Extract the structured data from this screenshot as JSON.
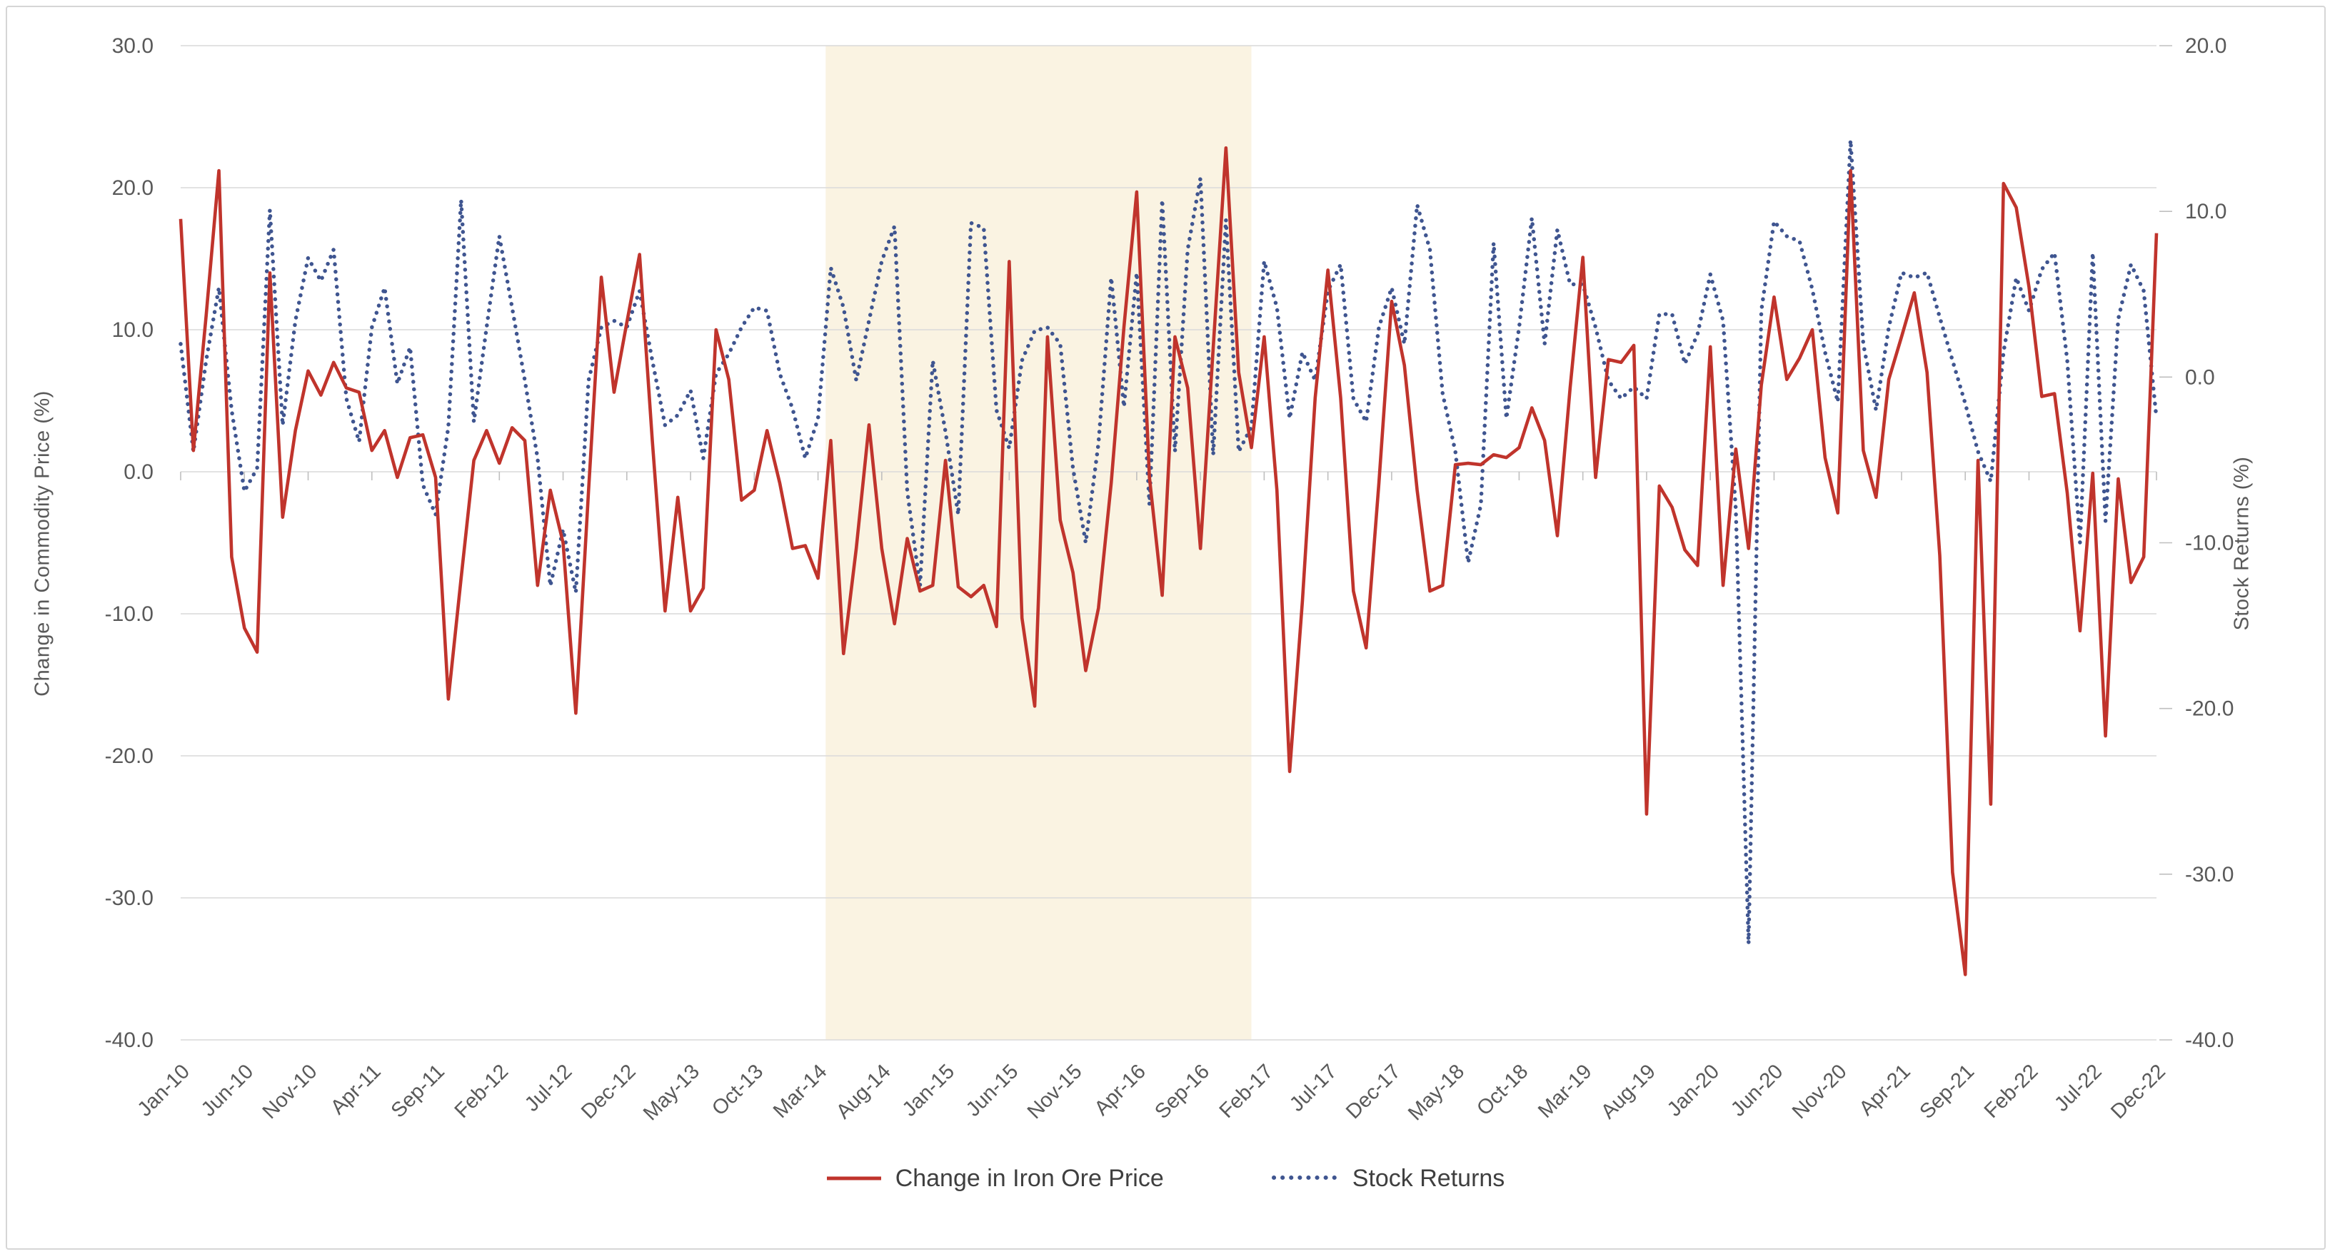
{
  "chart_data": {
    "type": "line",
    "title": "",
    "grid": "horizontal",
    "legend_position": "bottom",
    "left_axis": {
      "title": "Change in Commodity Price (%)",
      "min": -40.0,
      "max": 30.0,
      "step": 10,
      "ticks": [
        "30.0",
        "20.0",
        "10.0",
        "0.0",
        "-10.0",
        "-20.0",
        "-30.0",
        "-40.0"
      ]
    },
    "right_axis": {
      "title": "Stock Returns (%)",
      "min": -40.0,
      "max": 20.0,
      "step": 10,
      "ticks": [
        "20.0",
        "10.0",
        "0.0",
        "-10.0",
        "-20.0",
        "-30.0",
        "-40.0"
      ]
    },
    "x_tick_labels": [
      "Jan-10",
      "Jun-10",
      "Nov-10",
      "Apr-11",
      "Sep-11",
      "Feb-12",
      "Jul-12",
      "Dec-12",
      "May-13",
      "Oct-13",
      "Mar-14",
      "Aug-14",
      "Jan-15",
      "Jun-15",
      "Nov-15",
      "Apr-16",
      "Sep-16",
      "Feb-17",
      "Jul-17",
      "Dec-17",
      "May-18",
      "Oct-18",
      "Mar-19",
      "Aug-19",
      "Jan-20",
      "Jun-20",
      "Nov-20",
      "Apr-21",
      "Sep-21",
      "Feb-22",
      "Jul-22",
      "Dec-22"
    ],
    "highlight_band": {
      "from": "Mar-14",
      "to": "Feb-17",
      "color": "#faf3e2"
    },
    "months": [
      "Jan-10",
      "Feb-10",
      "Mar-10",
      "Apr-10",
      "May-10",
      "Jun-10",
      "Jul-10",
      "Aug-10",
      "Sep-10",
      "Oct-10",
      "Nov-10",
      "Dec-10",
      "Jan-11",
      "Feb-11",
      "Mar-11",
      "Apr-11",
      "May-11",
      "Jun-11",
      "Jul-11",
      "Aug-11",
      "Sep-11",
      "Oct-11",
      "Nov-11",
      "Dec-11",
      "Jan-12",
      "Feb-12",
      "Mar-12",
      "Apr-12",
      "May-12",
      "Jun-12",
      "Jul-12",
      "Aug-12",
      "Sep-12",
      "Oct-12",
      "Nov-12",
      "Dec-12",
      "Jan-13",
      "Feb-13",
      "Mar-13",
      "Apr-13",
      "May-13",
      "Jun-13",
      "Jul-13",
      "Aug-13",
      "Sep-13",
      "Oct-13",
      "Nov-13",
      "Dec-13",
      "Jan-14",
      "Feb-14",
      "Mar-14",
      "Apr-14",
      "May-14",
      "Jun-14",
      "Jul-14",
      "Aug-14",
      "Sep-14",
      "Oct-14",
      "Nov-14",
      "Dec-14",
      "Jan-15",
      "Feb-15",
      "Mar-15",
      "Apr-15",
      "May-15",
      "Jun-15",
      "Jul-15",
      "Aug-15",
      "Sep-15",
      "Oct-15",
      "Nov-15",
      "Dec-15",
      "Jan-16",
      "Feb-16",
      "Mar-16",
      "Apr-16",
      "May-16",
      "Jun-16",
      "Jul-16",
      "Aug-16",
      "Sep-16",
      "Oct-16",
      "Nov-16",
      "Dec-16",
      "Jan-17",
      "Feb-17",
      "Mar-17",
      "Apr-17",
      "May-17",
      "Jun-17",
      "Jul-17",
      "Aug-17",
      "Sep-17",
      "Oct-17",
      "Nov-17",
      "Dec-17",
      "Jan-18",
      "Feb-18",
      "Mar-18",
      "Apr-18",
      "May-18",
      "Jun-18",
      "Jul-18",
      "Aug-18",
      "Sep-18",
      "Oct-18",
      "Nov-18",
      "Dec-18",
      "Jan-19",
      "Feb-19",
      "Mar-19",
      "Apr-19",
      "May-19",
      "Jun-19",
      "Jul-19",
      "Aug-19",
      "Sep-19",
      "Oct-19",
      "Nov-19",
      "Dec-19",
      "Jan-20",
      "Feb-20",
      "Mar-20",
      "Apr-20",
      "May-20",
      "Jun-20",
      "Jul-20",
      "Aug-20",
      "Sep-20",
      "Oct-20",
      "Nov-20",
      "Dec-20",
      "Jan-21",
      "Feb-21",
      "Mar-21",
      "Apr-21",
      "May-21",
      "Jun-21",
      "Jul-21",
      "Aug-21",
      "Sep-21",
      "Oct-21",
      "Nov-21",
      "Dec-21",
      "Jan-22",
      "Feb-22",
      "Mar-22",
      "Apr-22",
      "May-22",
      "Jun-22",
      "Jul-22",
      "Aug-22",
      "Sep-22",
      "Oct-22",
      "Nov-22",
      "Dec-22"
    ],
    "series": [
      {
        "name": "Change in Iron Ore Price",
        "axis": "left",
        "style": "solid",
        "color": "#c0342c",
        "values": [
          17.8,
          1.5,
          11.0,
          21.2,
          -6.0,
          -11.0,
          -12.7,
          14.0,
          -3.2,
          2.9,
          7.1,
          5.4,
          7.7,
          5.9,
          5.6,
          1.5,
          2.9,
          -0.4,
          2.4,
          2.6,
          -0.4,
          -16.0,
          -7.5,
          0.8,
          2.9,
          0.6,
          3.1,
          2.2,
          -8.0,
          -1.3,
          -5.0,
          -17.0,
          -1.3,
          13.7,
          5.6,
          10.5,
          15.3,
          2.2,
          -9.8,
          -1.8,
          -9.8,
          -8.2,
          10.0,
          6.5,
          -2.0,
          -1.3,
          2.9,
          -0.8,
          -5.4,
          -5.2,
          -7.5,
          2.2,
          -12.8,
          -5.4,
          3.3,
          -5.4,
          -10.7,
          -4.7,
          -8.4,
          -8.0,
          0.8,
          -8.1,
          -8.8,
          -8.0,
          -10.9,
          14.8,
          -10.3,
          -16.5,
          9.5,
          -3.4,
          -7.1,
          -14.0,
          -9.6,
          -0.8,
          10.2,
          19.7,
          -0.4,
          -8.7,
          9.5,
          5.9,
          -5.4,
          8.7,
          22.8,
          7.0,
          1.7,
          9.5,
          -1.3,
          -21.1,
          -9.1,
          5.2,
          14.2,
          5.2,
          -8.4,
          -12.4,
          -0.8,
          12.0,
          7.5,
          -1.3,
          -8.4,
          -8.0,
          0.5,
          0.6,
          0.5,
          1.2,
          1.0,
          1.7,
          4.5,
          2.2,
          -4.5,
          5.9,
          15.1,
          -0.4,
          7.9,
          7.7,
          8.9,
          -24.1,
          -1.0,
          -2.5,
          -5.5,
          -6.6,
          8.8,
          -8.0,
          1.6,
          -5.4,
          6.1,
          12.3,
          6.5,
          8.0,
          10.0,
          1.0,
          -2.9,
          21.2,
          1.5,
          -1.8,
          6.5,
          9.5,
          12.6,
          7.0,
          -5.9,
          -28.2,
          -35.4,
          0.8,
          -23.4,
          20.3,
          18.6,
          13.0,
          5.3,
          5.5,
          -1.5,
          -11.2,
          -0.1,
          -18.6,
          -0.5,
          -7.8,
          -6.0,
          16.8
        ]
      },
      {
        "name": "Stock Returns",
        "axis": "right",
        "style": "dotted",
        "color": "#3f5590",
        "values": [
          2.0,
          -4.5,
          1.0,
          5.4,
          -2.0,
          -6.9,
          -5.5,
          10.1,
          -2.9,
          3.4,
          7.2,
          5.8,
          7.7,
          -1.3,
          -3.9,
          3.0,
          5.4,
          -0.4,
          1.8,
          -6.5,
          -8.3,
          -3.0,
          10.7,
          -2.7,
          3.0,
          8.5,
          4.2,
          -0.2,
          -4.9,
          -12.6,
          -9.2,
          -13.0,
          -0.2,
          3.0,
          3.4,
          3.0,
          5.2,
          1.0,
          -2.9,
          -2.3,
          -0.8,
          -4.9,
          0.2,
          1.4,
          3.0,
          4.2,
          4.0,
          0.2,
          -1.9,
          -4.9,
          -2.5,
          6.6,
          4.2,
          -0.2,
          3.4,
          7.0,
          9.1,
          -6.9,
          -12.6,
          1.0,
          -3.3,
          -8.3,
          9.3,
          9.0,
          -2.0,
          -4.3,
          1.0,
          2.8,
          3.0,
          2.0,
          -5.5,
          -10.0,
          -4.0,
          6.0,
          -1.8,
          6.3,
          -7.7,
          10.7,
          -4.5,
          7.7,
          12.0,
          -4.7,
          9.5,
          -4.5,
          -3.0,
          7.0,
          4.2,
          -2.5,
          1.5,
          -0.2,
          5.2,
          6.8,
          -1.3,
          -2.7,
          3.0,
          5.4,
          2.0,
          10.4,
          7.7,
          -1.0,
          -4.5,
          -11.2,
          -7.7,
          8.1,
          -2.5,
          3.0,
          9.6,
          2.0,
          8.9,
          5.6,
          5.6,
          3.0,
          -0.2,
          -1.3,
          -0.6,
          -1.3,
          3.8,
          3.8,
          0.8,
          2.6,
          6.2,
          3.4,
          -8.0,
          -34.2,
          4.0,
          9.4,
          8.5,
          8.2,
          5.3,
          1.5,
          -1.5,
          14.3,
          2.0,
          -2.0,
          3.0,
          6.3,
          6.0,
          6.3,
          3.6,
          1.0,
          -1.6,
          -4.5,
          -6.3,
          1.5,
          6.0,
          4.0,
          6.5,
          7.5,
          1.0,
          -10.0,
          7.5,
          -8.7,
          3.5,
          6.8,
          5.2,
          -2.5
        ]
      }
    ],
    "colors": {
      "gridline": "#d9d9d9",
      "tick": "#bfbfbf",
      "axis_text": "#595959",
      "legend_text": "#3f3f3f",
      "band": "#faf3e2",
      "border": "#d6d6d6"
    },
    "legend": {
      "items": [
        {
          "label": "Change in Iron Ore Price"
        },
        {
          "label": "Stock Returns"
        }
      ]
    }
  }
}
